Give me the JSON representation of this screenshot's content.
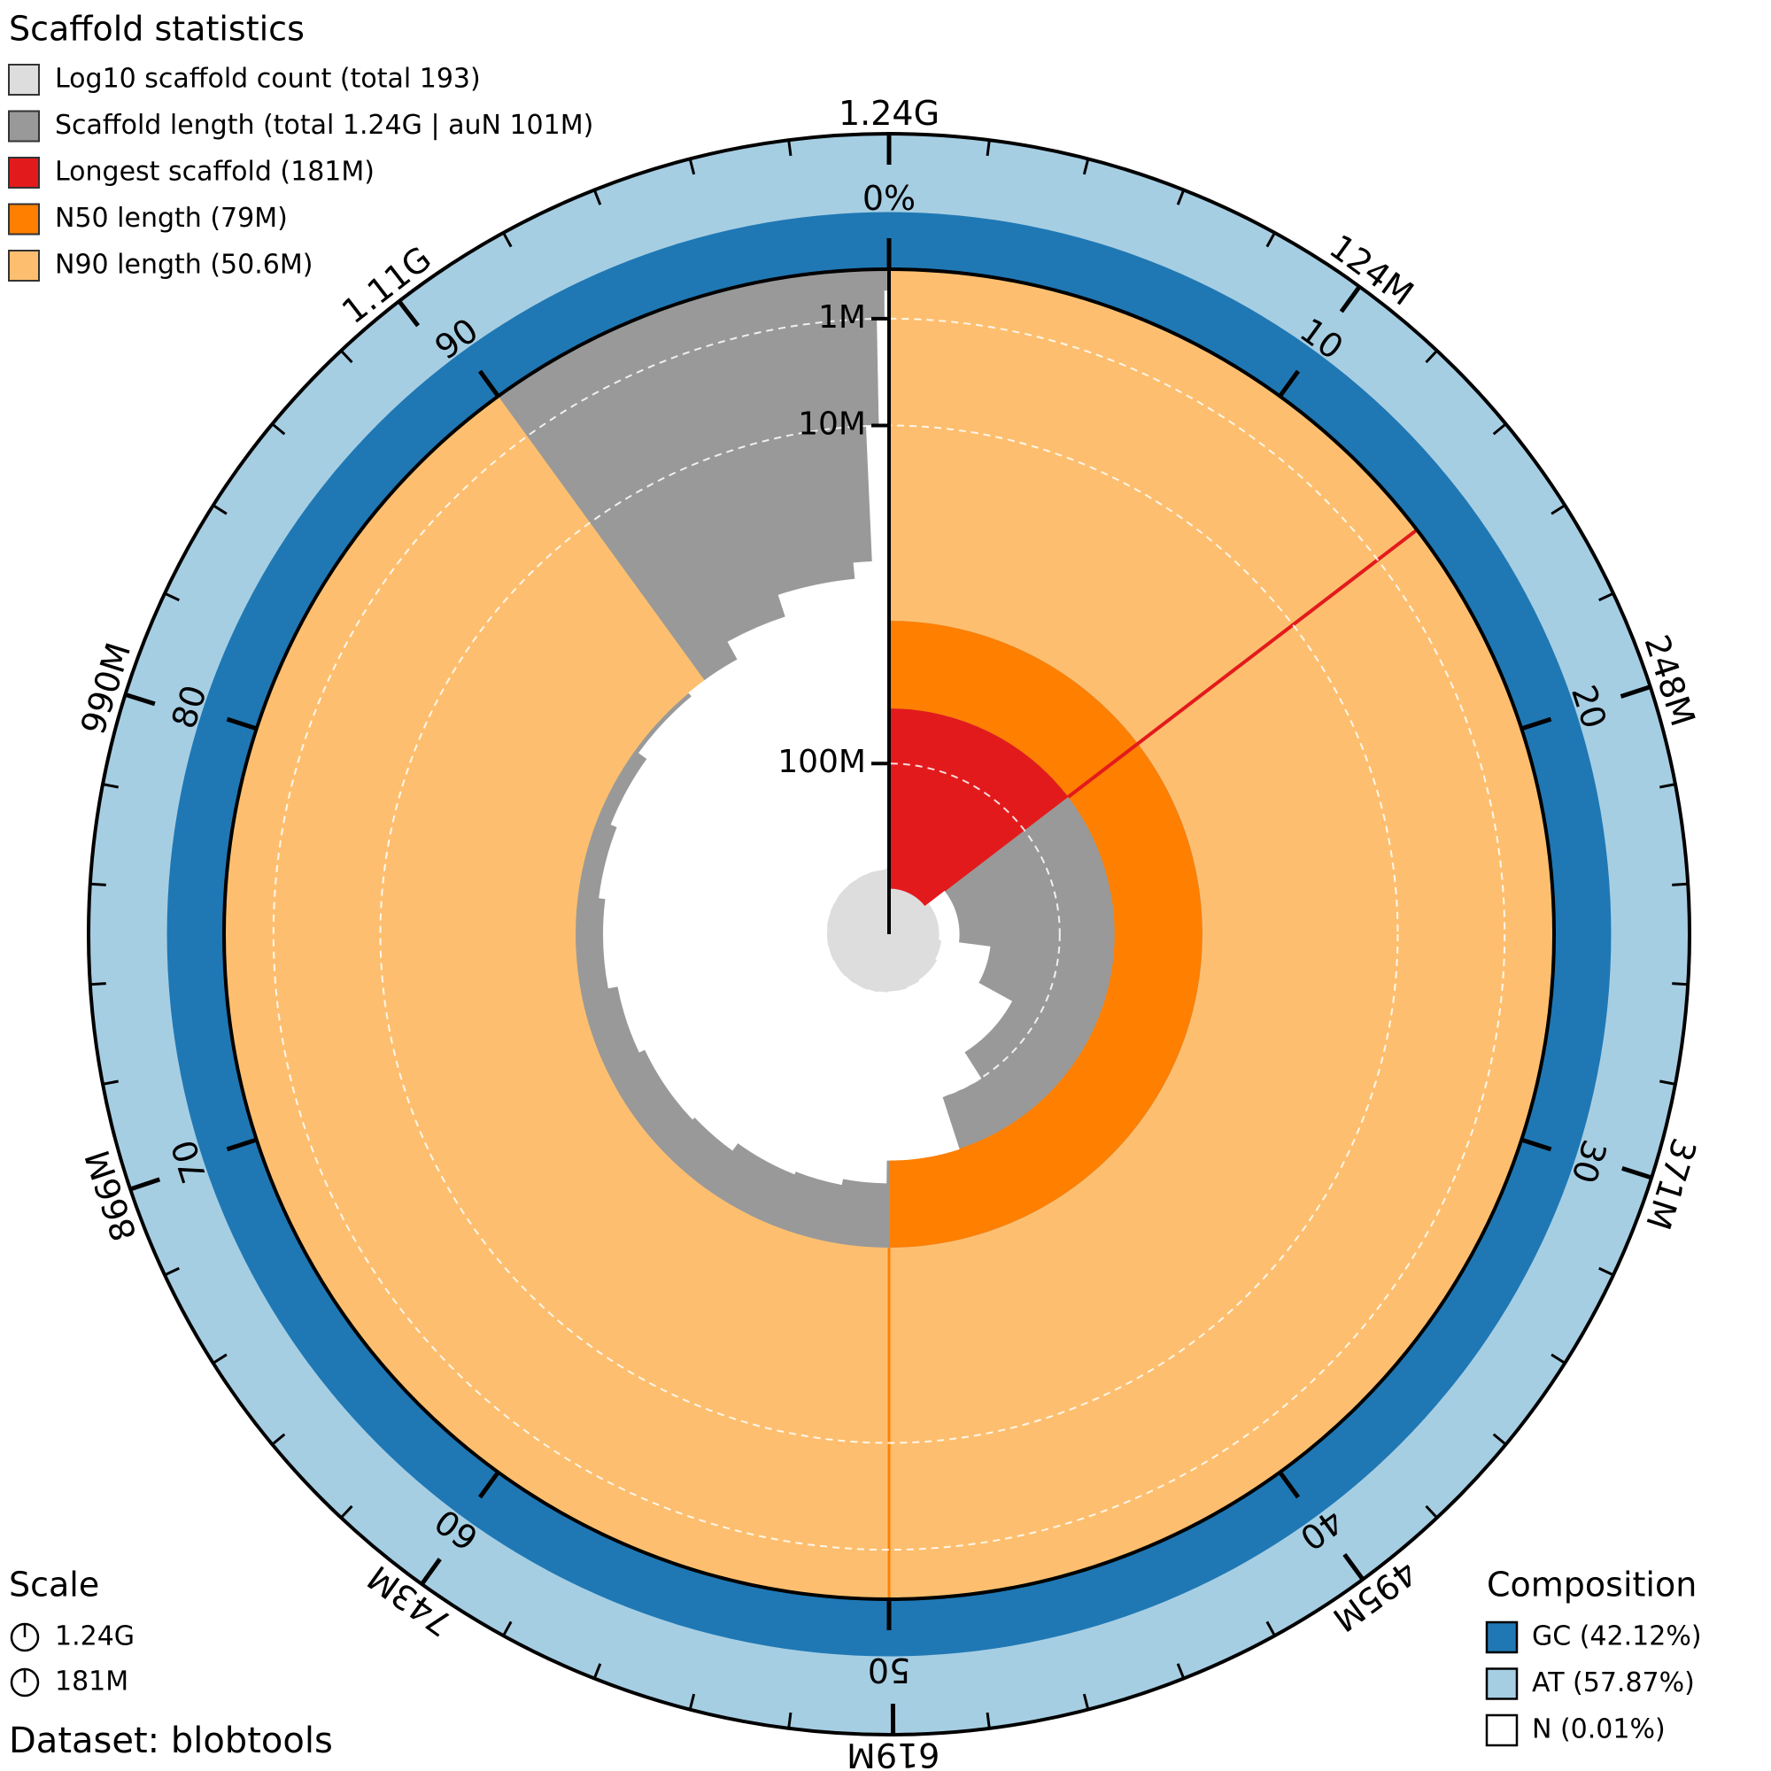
{
  "chart_data": {
    "type": "snail",
    "title": "Scaffold statistics",
    "legend": [
      "Log10 scaffold count (total 193)",
      "Scaffold length (total 1.24G | auN 101M)",
      "Longest scaffold (181M)",
      "N50 length (79M)",
      "N90 length (50.6M)"
    ],
    "legend_colors": [
      "#dddddd",
      "#999999",
      "#e31a1c",
      "#ff7f00",
      "#fdbf6f"
    ],
    "total_length": 1240000000,
    "scaffold_count": 193,
    "longest": 181000000,
    "n50": 79000000,
    "n90": 50600000,
    "percent": [
      0,
      14.6,
      27,
      33,
      41,
      45,
      50.2,
      53,
      56,
      60,
      63,
      68,
      72,
      77,
      81,
      85,
      89,
      92,
      95,
      98.5,
      99.3,
      99.7,
      99.9
    ],
    "lengths": [
      181000000,
      145000000,
      130000000,
      113000000,
      100000000,
      79000000,
      71000000,
      69000000,
      68000000,
      65000000,
      64000000,
      62000000,
      59000000,
      57000000,
      55000000,
      52000000,
      50600000,
      45000000,
      39000000,
      35000000,
      10000000,
      1000000,
      200000
    ],
    "counts": [
      1,
      2,
      3,
      4,
      5,
      6,
      7,
      8,
      9,
      10,
      11,
      12,
      13,
      14,
      15,
      16,
      17,
      18,
      19,
      20,
      25,
      60,
      193
    ],
    "xticks": [
      {
        "value": 0,
        "label": "0%"
      },
      10,
      20,
      30,
      40,
      50,
      60,
      70,
      80,
      90
    ],
    "length_ticks": [
      {
        "value": 124000000,
        "label": "124M"
      },
      {
        "value": 248000000,
        "label": "248M"
      },
      {
        "value": 371000000,
        "label": "371M"
      },
      {
        "value": 495000000,
        "label": "495M"
      },
      {
        "value": 619000000,
        "label": "619M"
      },
      {
        "value": 743000000,
        "label": "743M"
      },
      {
        "value": 866000000,
        "label": "866M"
      },
      {
        "value": 990000000,
        "label": "990M"
      },
      {
        "value": 1110000000,
        "label": "1.11G"
      },
      {
        "value": 1240000000,
        "label": "1.24G"
      }
    ],
    "rticks": [
      {
        "value": 1000000,
        "label": "1M"
      },
      {
        "value": 10000000,
        "label": "10M"
      },
      {
        "value": 100000000,
        "label": "100M"
      }
    ],
    "scale_title": "Scale",
    "scale_labels": [
      "1.24G",
      "181M"
    ],
    "composition": {
      "title": "Composition",
      "labels": [
        "GC (42.12%)",
        "AT (57.87%)",
        "N (0.01%)"
      ],
      "values": [
        42.12,
        57.87,
        0.01
      ],
      "colors": [
        "#1f78b4",
        "#a6cee3",
        "#ffffff"
      ]
    },
    "dataset": "Dataset: blobtools"
  }
}
